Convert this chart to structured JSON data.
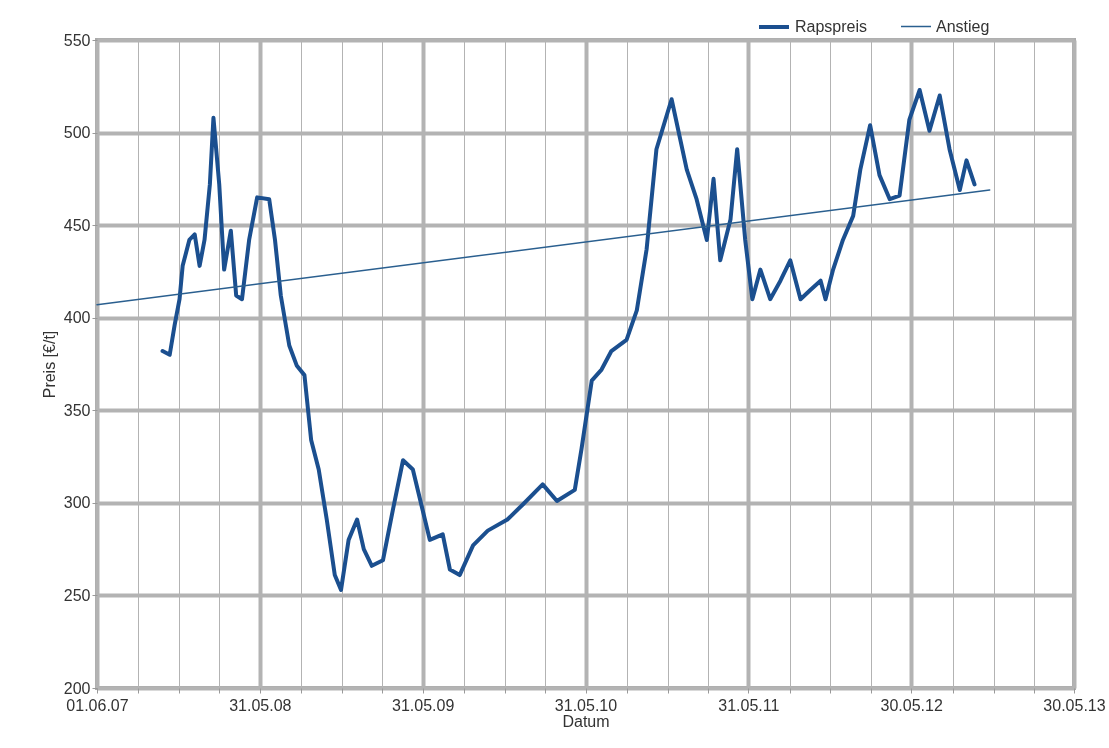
{
  "chart_data": {
    "type": "line",
    "xlabel": "Datum",
    "ylabel": "Preis [€/t]",
    "legend": "top right",
    "grid": true,
    "xlim": [
      "2007-06-01",
      "2013-05-30"
    ],
    "xticks": [
      {
        "value": "2007-06-01",
        "label": "01.06.07"
      },
      {
        "value": "2007-09-01",
        "label": null
      },
      {
        "value": "2007-12-01",
        "label": null
      },
      {
        "value": "2008-03-01",
        "label": null
      },
      {
        "value": "2008-05-31",
        "label": "31.05.08"
      },
      {
        "value": "2008-09-01",
        "label": null
      },
      {
        "value": "2008-12-01",
        "label": null
      },
      {
        "value": "2009-03-01",
        "label": null
      },
      {
        "value": "2009-05-31",
        "label": "31.05.09"
      },
      {
        "value": "2009-09-01",
        "label": null
      },
      {
        "value": "2009-12-01",
        "label": null
      },
      {
        "value": "2010-03-01",
        "label": null
      },
      {
        "value": "2010-05-31",
        "label": "31.05.10"
      },
      {
        "value": "2010-09-01",
        "label": null
      },
      {
        "value": "2010-12-01",
        "label": null
      },
      {
        "value": "2011-03-01",
        "label": null
      },
      {
        "value": "2011-05-31",
        "label": "31.05.11"
      },
      {
        "value": "2011-09-01",
        "label": null
      },
      {
        "value": "2011-12-01",
        "label": null
      },
      {
        "value": "2012-03-01",
        "label": null
      },
      {
        "value": "2012-05-30",
        "label": "30.05.12"
      },
      {
        "value": "2012-09-01",
        "label": null
      },
      {
        "value": "2012-12-01",
        "label": null
      },
      {
        "value": "2013-03-01",
        "label": null
      },
      {
        "value": "2013-05-30",
        "label": "30.05.13"
      }
    ],
    "ylim": [
      200,
      550
    ],
    "yticks": [
      200,
      250,
      300,
      350,
      400,
      450,
      500,
      550
    ],
    "series": [
      {
        "name": "Rapspreis",
        "color": "#1b4f8f",
        "x": [
          "2007-10-26",
          "2007-11-11",
          "2007-11-22",
          "2007-12-03",
          "2007-12-10",
          "2007-12-25",
          "2008-01-06",
          "2008-01-17",
          "2008-01-28",
          "2008-02-09",
          "2008-02-17",
          "2008-03-01",
          "2008-03-12",
          "2008-03-27",
          "2008-04-08",
          "2008-04-21",
          "2008-05-07",
          "2008-05-25",
          "2008-06-21",
          "2008-07-04",
          "2008-07-17",
          "2008-08-05",
          "2008-08-22",
          "2008-09-08",
          "2008-09-23",
          "2008-10-10",
          "2008-10-28",
          "2008-11-15",
          "2008-11-29",
          "2008-12-16",
          "2009-01-04",
          "2009-01-19",
          "2009-02-06",
          "2009-03-03",
          "2009-03-25",
          "2009-04-17",
          "2009-05-09",
          "2009-05-31",
          "2009-06-16",
          "2009-07-15",
          "2009-07-31",
          "2009-08-22",
          "2009-09-21",
          "2009-10-24",
          "2009-12-07",
          "2010-01-10",
          "2010-02-24",
          "2010-03-28",
          "2010-05-07",
          "2010-05-22",
          "2010-06-14",
          "2010-07-06",
          "2010-07-28",
          "2010-08-31",
          "2010-09-23",
          "2010-10-15",
          "2010-11-06",
          "2010-12-10",
          "2011-01-13",
          "2011-02-04",
          "2011-02-27",
          "2011-03-14",
          "2011-03-29",
          "2011-04-21",
          "2011-05-06",
          "2011-05-24",
          "2011-06-09",
          "2011-06-27",
          "2011-07-19",
          "2011-08-11",
          "2011-09-02",
          "2011-09-25",
          "2011-10-17",
          "2011-11-09",
          "2011-11-20",
          "2011-12-07",
          "2011-12-29",
          "2012-01-21",
          "2012-02-06",
          "2012-02-28",
          "2012-03-20",
          "2012-04-12",
          "2012-05-04",
          "2012-05-26",
          "2012-06-18",
          "2012-07-10",
          "2012-08-02",
          "2012-08-24",
          "2012-09-16",
          "2012-10-01",
          "2012-10-19"
        ],
        "values": [
          382,
          380,
          396,
          410,
          428,
          442,
          445,
          428,
          442,
          472,
          508,
          472,
          426,
          447,
          412,
          410,
          442,
          465,
          464,
          442,
          412,
          385,
          374,
          369,
          334,
          318,
          291,
          261,
          253,
          280,
          291,
          275,
          266,
          269,
          296,
          323,
          318,
          296,
          280,
          283,
          264,
          261,
          277,
          285,
          291,
          299,
          310,
          301,
          307,
          329,
          366,
          372,
          382,
          388,
          404,
          437,
          491,
          518,
          480,
          464,
          442,
          475,
          431,
          453,
          491,
          442,
          410,
          426,
          410,
          420,
          431,
          410,
          415,
          420,
          410,
          426,
          442,
          455,
          480,
          504,
          477,
          464,
          466,
          507,
          523,
          501,
          520,
          491,
          469,
          485,
          472
        ]
      },
      {
        "name": "Anstieg",
        "color": "#2a5f8f",
        "x": [
          "2007-06-01",
          "2012-11-22"
        ],
        "values": [
          407,
          469
        ]
      }
    ]
  }
}
